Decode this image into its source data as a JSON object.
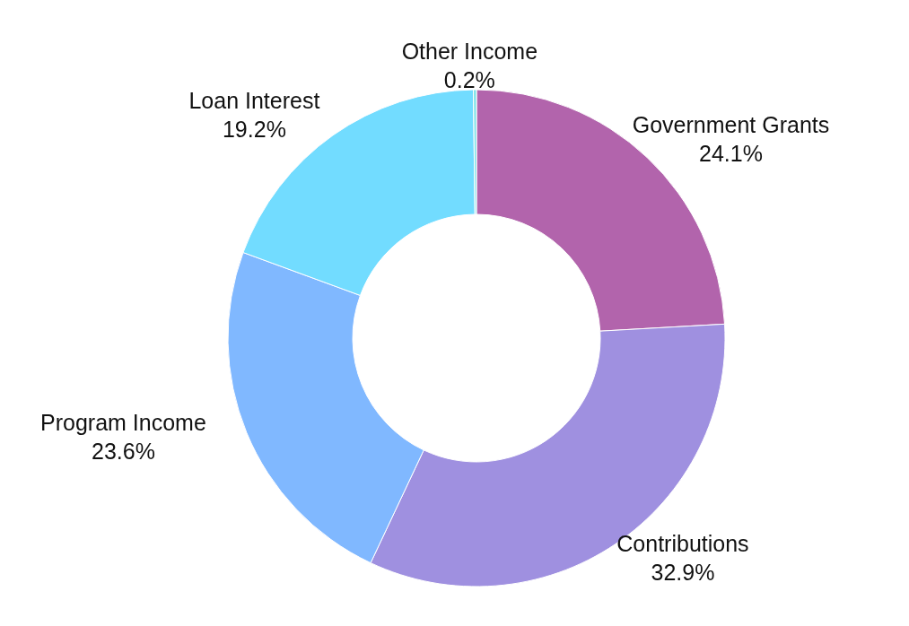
{
  "chart_data": {
    "type": "donut",
    "categories": [
      "Government Grants",
      "Contributions",
      "Program Income",
      "Loan Interest",
      "Other Income"
    ],
    "values": [
      24.1,
      32.9,
      23.6,
      19.2,
      0.2
    ],
    "colors": [
      "#b264ac",
      "#9f90e0",
      "#80b8ff",
      "#72dcff",
      "#7fe3e8"
    ],
    "value_labels": [
      "24.1%",
      "32.9%",
      "23.6%",
      "19.2%",
      "0.2%"
    ]
  }
}
